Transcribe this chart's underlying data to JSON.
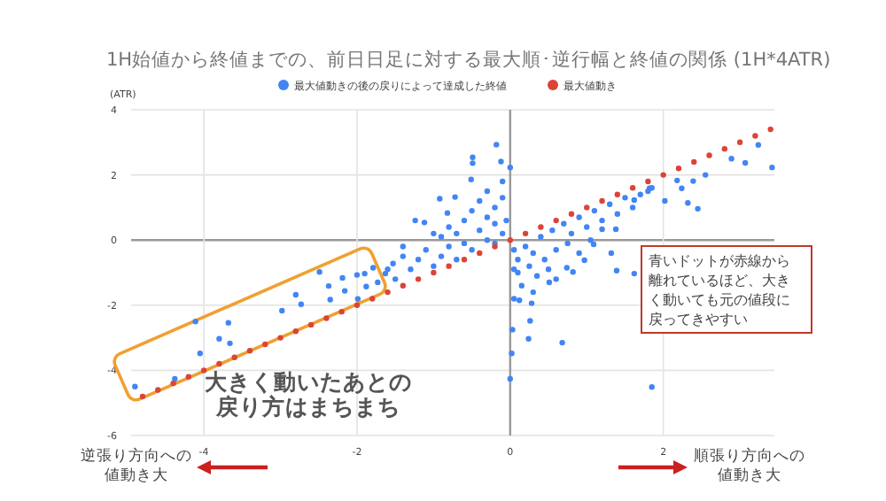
{
  "chart_data": {
    "type": "scatter",
    "title": "1H始値から終値までの、前日日足に対する最大順･逆行幅と終値の関係 (1H*4ATR)",
    "ylabel": "(ATR)",
    "xlim": [
      -4.95,
      3.45
    ],
    "ylim": [
      -6,
      4
    ],
    "xticks": [
      -4,
      -2,
      0,
      2
    ],
    "yticks": [
      -6,
      -4,
      -2,
      0,
      2,
      4
    ],
    "grid": true,
    "legend": "top",
    "marker": "circle",
    "annotations": [
      "大きく動いたあとの戻り方はまちまち",
      "青いドットが赤線から離れているほど、大きく動いても元の値段に戻ってきやすい",
      "逆張り方向への値動き大",
      "順張り方向への値動き大"
    ],
    "series": [
      {
        "name": "最大値動きの後の戻りによって達成した終値",
        "color": "#4285f4",
        "x": [
          -4.9,
          -4.38,
          -4.11,
          -4.05,
          -3.8,
          -3.68,
          -3.66,
          -2.98,
          -2.8,
          -2.73,
          -2.49,
          -2.37,
          -2.35,
          -2.19,
          -2.16,
          -2.0,
          -1.99,
          -1.9,
          -1.88,
          -1.79,
          -1.73,
          -1.63,
          -1.53,
          -1.4,
          -1.24,
          -1.12,
          -0.92,
          -0.82,
          -0.72,
          -0.18,
          -0.49,
          -0.49,
          -0.12,
          0.0,
          -0.51,
          0.0,
          0.02,
          0.03,
          0.24,
          0.68,
          1.85,
          2.89,
          3.07,
          3.24,
          3.42,
          2.45,
          2.32,
          2.55,
          2.24,
          2.02,
          2.18,
          2.39,
          1.82,
          1.62,
          1.38,
          1.39,
          1.62,
          0.97,
          0.82,
          0.74,
          0.51,
          0.28,
          0.26,
          0.12,
          1.09,
          1.32,
          1.2,
          -1.3,
          -1.2,
          -1.1,
          -1.0,
          -0.9,
          -0.9,
          -0.8,
          -0.8,
          -0.7,
          -0.7,
          -0.6,
          -0.6,
          -0.5,
          -0.5,
          -0.4,
          -0.4,
          -0.3,
          -0.3,
          -0.3,
          -0.2,
          -0.2,
          -0.2,
          -0.1,
          -0.1,
          -0.1,
          -0.05,
          -1.5,
          -1.6,
          -1.4,
          -1.0,
          0.05,
          0.1,
          0.1,
          0.15,
          0.2,
          0.25,
          0.3,
          0.35,
          0.4,
          0.45,
          0.5,
          0.55,
          0.6,
          0.7,
          0.75,
          0.8,
          0.9,
          1.0,
          1.1,
          1.2,
          1.3,
          1.4,
          1.5,
          1.6,
          1.7,
          1.8,
          1.85,
          0.9,
          0.6,
          0.3,
          0.05,
          0.05,
          1.05
        ],
        "values": [
          -4.5,
          -4.26,
          -2.5,
          -3.48,
          -3.03,
          -2.54,
          -3.17,
          -2.17,
          -1.68,
          -1.97,
          -0.98,
          -1.41,
          -1.83,
          -1.16,
          -1.56,
          -1.07,
          -1.81,
          -1.03,
          -1.43,
          -0.85,
          -1.3,
          -1.03,
          -0.72,
          -0.2,
          0.6,
          0.54,
          1.27,
          0.83,
          1.32,
          2.93,
          2.54,
          2.36,
          2.41,
          2.23,
          1.86,
          -4.26,
          -3.48,
          -2.75,
          -3.03,
          -3.15,
          -4.51,
          2.5,
          2.37,
          2.92,
          2.23,
          0.96,
          1.14,
          2.0,
          1.59,
          1.2,
          1.83,
          1.81,
          1.59,
          1.23,
          0.33,
          -0.94,
          -1.03,
          -0.62,
          -0.98,
          -0.85,
          -1.3,
          -1.94,
          -2.48,
          -1.85,
          -0.13,
          -0.4,
          0.33,
          -0.9,
          -0.6,
          -0.3,
          -0.8,
          -0.5,
          0.1,
          -0.2,
          0.4,
          -0.6,
          0.2,
          0.6,
          -0.1,
          0.9,
          -0.3,
          0.3,
          1.2,
          0.0,
          0.7,
          1.5,
          -0.1,
          0.5,
          1.0,
          0.2,
          1.3,
          1.8,
          0.6,
          -1.2,
          -0.9,
          -0.5,
          0.2,
          -0.3,
          -0.6,
          -1.0,
          -1.4,
          -0.2,
          -0.8,
          -0.4,
          -1.1,
          0.1,
          -0.6,
          -0.9,
          0.3,
          -0.3,
          0.5,
          -0.1,
          0.2,
          0.7,
          0.4,
          0.9,
          0.6,
          1.1,
          0.8,
          1.3,
          1.0,
          1.4,
          1.5,
          1.6,
          -0.4,
          -1.2,
          -1.6,
          -0.9,
          -1.8,
          0.0
        ]
      },
      {
        "name": "最大値動き",
        "color": "#db4437",
        "x": [
          -4.8,
          -4.6,
          -4.4,
          -4.2,
          -4.0,
          -3.8,
          -3.6,
          -3.4,
          -3.2,
          -3.0,
          -2.8,
          -2.6,
          -2.4,
          -2.2,
          -2.0,
          -1.8,
          -1.6,
          -1.4,
          -1.2,
          -1.0,
          -0.8,
          -0.6,
          -0.4,
          -0.2,
          0.0,
          0.2,
          0.4,
          0.6,
          0.8,
          1.0,
          1.2,
          1.4,
          1.6,
          1.8,
          2.0,
          2.2,
          2.4,
          2.6,
          2.8,
          3.0,
          3.2,
          3.4
        ],
        "values": [
          -4.8,
          -4.6,
          -4.4,
          -4.2,
          -4.0,
          -3.8,
          -3.6,
          -3.4,
          -3.2,
          -3.0,
          -2.8,
          -2.6,
          -2.4,
          -2.2,
          -2.0,
          -1.8,
          -1.6,
          -1.4,
          -1.2,
          -1.0,
          -0.8,
          -0.6,
          -0.4,
          -0.2,
          0.0,
          0.2,
          0.4,
          0.6,
          0.8,
          1.0,
          1.2,
          1.4,
          1.6,
          1.8,
          2.0,
          2.2,
          2.4,
          2.6,
          2.8,
          3.0,
          3.2,
          3.4
        ]
      }
    ]
  }
}
